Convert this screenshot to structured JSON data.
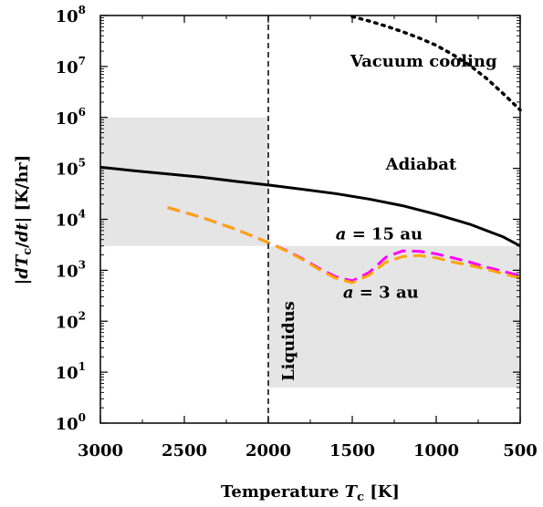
{
  "chart_data": {
    "type": "line",
    "xlabel": "Temperature T_c [K]",
    "xlabel_parts": {
      "prefix": "Temperature ",
      "var": "T",
      "sub": "c",
      "unit": " [K]"
    },
    "ylabel": "|dT_c/dt| [K/hr]",
    "ylabel_parts": {
      "bar": "|",
      "d1": "d",
      "var": "T",
      "sub": "c",
      "slash": "/",
      "d2": "dt",
      "unit": " [K/hr]"
    },
    "x_scale": "linear",
    "x_reversed": true,
    "xlim": [
      3000,
      500
    ],
    "y_scale": "log",
    "ylim": [
      1,
      100000000
    ],
    "x_ticks": [
      3000,
      2500,
      2000,
      1500,
      1000,
      500
    ],
    "x_tick_labels": [
      "3000",
      "2500",
      "2000",
      "1500",
      "1000",
      "500"
    ],
    "y_ticks": [
      1,
      10,
      100,
      1000,
      10000,
      100000,
      1000000,
      10000000,
      100000000
    ],
    "y_tick_labels": [
      {
        "base": "10",
        "exp": "0"
      },
      {
        "base": "10",
        "exp": "1"
      },
      {
        "base": "10",
        "exp": "2"
      },
      {
        "base": "10",
        "exp": "3"
      },
      {
        "base": "10",
        "exp": "4"
      },
      {
        "base": "10",
        "exp": "5"
      },
      {
        "base": "10",
        "exp": "6"
      },
      {
        "base": "10",
        "exp": "7"
      },
      {
        "base": "10",
        "exp": "8"
      }
    ],
    "grid": false,
    "series": [
      {
        "label": "Adiabat",
        "color": "#000000",
        "style": "solid",
        "x": [
          3000,
          2800,
          2600,
          2400,
          2200,
          2000,
          1800,
          1600,
          1400,
          1200,
          1000,
          800,
          600,
          500
        ],
        "y": [
          105000,
          90000,
          78000,
          67000,
          56000,
          47000,
          39000,
          32000,
          25000,
          18500,
          12500,
          8000,
          4500,
          3000
        ]
      },
      {
        "label": "Vacuum cooling",
        "color": "#000000",
        "style": "dotted",
        "x": [
          1500,
          1400,
          1300,
          1200,
          1100,
          1000,
          900,
          800,
          700,
          600,
          500
        ],
        "y": [
          95000000,
          78000000,
          62000000,
          48000000,
          36000000,
          26000000,
          17000000,
          10500000,
          5800000,
          2900000,
          1400000
        ]
      },
      {
        "label": "a = 15 au",
        "color": "#ff00ff",
        "style": "dashed",
        "x": [
          2600,
          2400,
          2200,
          2000,
          1900,
          1800,
          1700,
          1600,
          1500,
          1400,
          1300,
          1200,
          1100,
          1000,
          900,
          800,
          700,
          600,
          500
        ],
        "y": [
          17000,
          11000,
          6500,
          3500,
          2500,
          1700,
          1100,
          750,
          620,
          900,
          1800,
          2400,
          2350,
          2100,
          1750,
          1450,
          1150,
          950,
          780
        ]
      },
      {
        "label": "a = 3 au",
        "color": "#ffa500",
        "style": "dashed",
        "x": [
          2600,
          2400,
          2200,
          2000,
          1900,
          1800,
          1700,
          1600,
          1500,
          1400,
          1300,
          1200,
          1100,
          1000,
          900,
          800,
          700,
          600,
          500
        ],
        "y": [
          17000,
          11000,
          6500,
          3500,
          2450,
          1650,
          1050,
          700,
          570,
          800,
          1450,
          1850,
          1950,
          1750,
          1450,
          1250,
          1050,
          850,
          700
        ]
      }
    ],
    "regions": [
      {
        "x": [
          3000,
          2000
        ],
        "y": [
          3000,
          1000000
        ],
        "color": "#e5e5e5"
      },
      {
        "x": [
          2000,
          500
        ],
        "y": [
          5,
          3000
        ],
        "color": "#e5e5e5"
      }
    ],
    "vlines": [
      {
        "x": 2000,
        "label": "Liquidus",
        "style": "dashed",
        "color": "#000000"
      }
    ],
    "annotations": [
      {
        "text": "Vacuum cooling",
        "x": 1075,
        "y": 10000000
      },
      {
        "text": "Adiabat",
        "x": 1090,
        "y": 95000
      },
      {
        "text": "a = 15 au",
        "var": "a",
        "rest": " = 15 au",
        "x": 1340,
        "y": 4000
      },
      {
        "text": "a = 3 au",
        "var": "a",
        "rest": " = 3 au",
        "x": 1330,
        "y": 290
      }
    ]
  }
}
